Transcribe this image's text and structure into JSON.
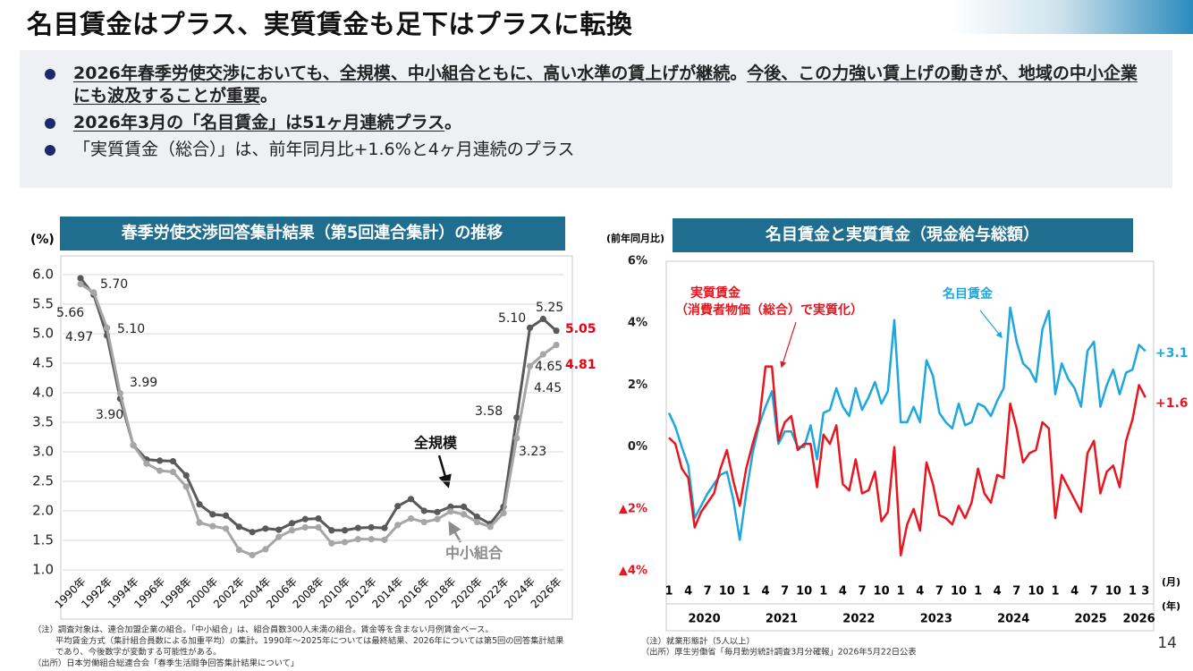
{
  "header": {
    "title": "名目賃金はプラス、実質賃金も足下はプラスに転換"
  },
  "bullets": [
    {
      "bold": true,
      "segments": [
        {
          "text": "2026年春季労使交渉においても、全規模、中小組合ともに、高い水準の賃上げが継続",
          "underline": true
        },
        {
          "text": "。",
          "underline": false
        },
        {
          "text": "今後、この力強い賃上げの動きが、地域の中小企業にも波及することが重要",
          "underline": true
        },
        {
          "text": "。",
          "underline": false
        }
      ]
    },
    {
      "bold": true,
      "segments": [
        {
          "text": "2026年3月の「名目賃金」は51ヶ月連続プラス",
          "underline": true
        },
        {
          "text": "。",
          "underline": false
        }
      ]
    },
    {
      "bold": false,
      "segments": [
        {
          "text": "「実質賃金（総合）」は、前年同月比+1.6%と4ヶ月連続のプラス",
          "underline": false
        }
      ]
    }
  ],
  "page_number": "14",
  "chart_data": [
    {
      "type": "line",
      "title": "春季労使交渉回答集計結果（第5回連合集計）の推移",
      "ylabel": "(%)",
      "categories": [
        "1990年",
        null,
        "1992年",
        null,
        "1994年",
        null,
        "1996年",
        null,
        "1998年",
        null,
        "2000年",
        null,
        "2002年",
        null,
        "2004年",
        null,
        "2006年",
        null,
        "2008年",
        null,
        "2010年",
        null,
        "2012年",
        null,
        "2014年",
        null,
        "2016年",
        null,
        "2018年",
        null,
        "2020年",
        null,
        "2022年",
        null,
        "2024年",
        null,
        "2026年"
      ],
      "ylim": [
        1.0,
        6.0
      ],
      "yticks": [
        {
          "value": 1.0,
          "label": "1.0"
        },
        1.5,
        {
          "value": 2.0,
          "label": "2.0"
        },
        2.5,
        {
          "value": 3.0,
          "label": "3.0"
        },
        3.5,
        {
          "value": 4.0,
          "label": "4.0"
        },
        4.5,
        {
          "value": 5.0,
          "label": "5.0"
        },
        5.5,
        {
          "value": 6.0,
          "label": "6.0"
        }
      ],
      "grid": true,
      "markers": true,
      "series": [
        {
          "name": "全規模",
          "color": "#595959",
          "values": [
            5.94,
            5.66,
            4.97,
            3.9,
            3.11,
            2.87,
            2.85,
            2.84,
            2.6,
            2.11,
            1.94,
            1.92,
            1.73,
            1.64,
            1.7,
            1.68,
            1.79,
            1.86,
            1.87,
            1.67,
            1.67,
            1.71,
            1.72,
            1.71,
            2.08,
            2.2,
            2.0,
            1.98,
            2.07,
            2.07,
            1.9,
            1.78,
            2.07,
            3.58,
            5.1,
            5.25,
            5.05
          ],
          "value_labels": [
            null,
            "5.66",
            "4.97",
            "3.90",
            null,
            null,
            null,
            null,
            null,
            null,
            null,
            null,
            null,
            null,
            null,
            null,
            null,
            null,
            null,
            null,
            null,
            null,
            null,
            null,
            null,
            null,
            null,
            null,
            null,
            null,
            null,
            null,
            null,
            "3.58",
            "5.10",
            "5.25",
            "5.05"
          ]
        },
        {
          "name": "中小組合",
          "color": "#a6a6a6",
          "values": [
            5.84,
            5.7,
            5.1,
            3.99,
            3.11,
            2.8,
            2.68,
            2.66,
            2.41,
            1.8,
            1.74,
            1.7,
            1.34,
            1.25,
            1.35,
            1.56,
            1.67,
            1.72,
            1.72,
            1.45,
            1.47,
            1.52,
            1.52,
            1.51,
            1.76,
            1.87,
            1.81,
            1.86,
            1.99,
            1.94,
            1.81,
            1.73,
            1.96,
            3.23,
            4.45,
            4.65,
            4.81
          ],
          "value_labels": [
            null,
            "5.70",
            "5.10",
            "3.99",
            null,
            null,
            null,
            null,
            null,
            null,
            null,
            null,
            null,
            null,
            null,
            null,
            null,
            null,
            null,
            null,
            null,
            null,
            null,
            null,
            null,
            null,
            null,
            null,
            null,
            null,
            null,
            null,
            null,
            "3.23",
            "4.45",
            "4.65",
            "4.81"
          ]
        }
      ],
      "highlight_color": "#e60012",
      "notes": [
        "（注）調査対象は、連合加盟企業の組合。「中小組合」は、組合員数300人未満の組合。賃金等を含まない月例賃金ベース。",
        "平均賃金方式（集計組合員数による加重平均）の集計。1990年～2025年については最終結果、2026年については第5回の回答集計結果",
        "であり、今後数字が変動する可能性がある。",
        "（出所）日本労働組合総連合会「春季生活闘争回答集計結果について」"
      ]
    },
    {
      "type": "line",
      "title": "名目賃金と実質賃金（現金給与総額）",
      "ylabel": "(前年同月比)",
      "xlabel": "(月)",
      "year_axis_label": "(年)",
      "categories": [
        "1",
        null,
        null,
        "4",
        null,
        null,
        "7",
        null,
        null,
        "10",
        null,
        null,
        "1",
        null,
        null,
        "4",
        null,
        null,
        "7",
        null,
        null,
        "10",
        null,
        null,
        "1",
        null,
        null,
        "4",
        null,
        null,
        "7",
        null,
        null,
        "10",
        null,
        null,
        "1",
        null,
        null,
        "4",
        null,
        null,
        "7",
        null,
        null,
        "10",
        null,
        null,
        "1",
        null,
        null,
        "4",
        null,
        null,
        "7",
        null,
        null,
        "10",
        null,
        null,
        "1",
        null,
        null,
        "4",
        null,
        null,
        "7",
        null,
        null,
        "10",
        null,
        null,
        "1",
        null,
        "3"
      ],
      "years": [
        "2020",
        "2021",
        "2022",
        "2023",
        "2024",
        "2025",
        "2026"
      ],
      "ylim": [
        -4,
        6
      ],
      "yticks": [
        {
          "value": 6,
          "label": "6%"
        },
        {
          "value": 4,
          "label": "4%"
        },
        {
          "value": 2,
          "label": "2%"
        },
        {
          "value": 0,
          "label": "0%"
        },
        {
          "value": -2,
          "label": "▲2%"
        },
        {
          "value": -4,
          "label": "▲4%"
        }
      ],
      "grid": false,
      "markers": false,
      "series": [
        {
          "name": "名目賃金",
          "color": "#1ea7dc",
          "values": [
            1.1,
            0.65,
            0,
            -0.6,
            -2.3,
            -1.9,
            -1.5,
            -1.2,
            -0.9,
            -0.8,
            -1.7,
            -3.0,
            -1.5,
            -0.2,
            0.7,
            1.3,
            1.8,
            0.1,
            0.5,
            0.5,
            0,
            0,
            0.7,
            -0.4,
            1.1,
            1.2,
            1.9,
            1.3,
            1.0,
            1.9,
            1.2,
            1.6,
            2.1,
            1.4,
            1.8,
            4.1,
            0.8,
            0.8,
            1.3,
            0.8,
            2.8,
            2.3,
            1.1,
            0.8,
            0.6,
            1.4,
            0.7,
            0.8,
            1.4,
            1.3,
            1.0,
            1.5,
            1.9,
            4.5,
            3.4,
            2.7,
            2.5,
            2.1,
            3.8,
            4.4,
            1.7,
            2.7,
            2.2,
            1.9,
            1.3,
            3.1,
            3.4,
            1.3,
            2.0,
            2.5,
            1.7,
            2.4,
            2.5,
            3.3,
            3.1
          ],
          "end_label": "+3.1"
        },
        {
          "name": "実質賃金",
          "note": "（消費者物価（総合）で実質化）",
          "color": "#e8161e",
          "values": [
            0.3,
            0.1,
            -0.7,
            -1.0,
            -2.6,
            -2.1,
            -1.8,
            -1.5,
            -0.7,
            -0.1,
            -1.1,
            -1.9,
            -0.7,
            0.1,
            0.8,
            2.6,
            2.6,
            0.2,
            0.8,
            1.0,
            -0.1,
            0.1,
            0.1,
            -1.3,
            0.4,
            0.1,
            0.7,
            -1.2,
            -1.4,
            -0.4,
            -1.5,
            -1.4,
            -0.8,
            -2.4,
            -2.1,
            0.0,
            -3.5,
            -2.5,
            -2.0,
            -2.7,
            -0.5,
            -1.2,
            -2.2,
            -2.3,
            -2.5,
            -1.9,
            -2.3,
            -1.8,
            -0.7,
            -1.5,
            -1.8,
            -0.9,
            -1.0,
            1.4,
            0.6,
            -0.5,
            -0.2,
            -0.1,
            0.8,
            0.6,
            -2.3,
            -0.9,
            -1.3,
            -1.7,
            -2.1,
            -0.2,
            0.2,
            -1.5,
            -0.8,
            -0.6,
            -1.3,
            0.2,
            0.9,
            2.0,
            1.6
          ],
          "end_label": "+1.6"
        }
      ],
      "notes": [
        "（注）就業形態計（5人以上）",
        "（出所）厚生労働省「毎月勤労統計調査3月分確報」2026年5月22日公表"
      ]
    }
  ]
}
